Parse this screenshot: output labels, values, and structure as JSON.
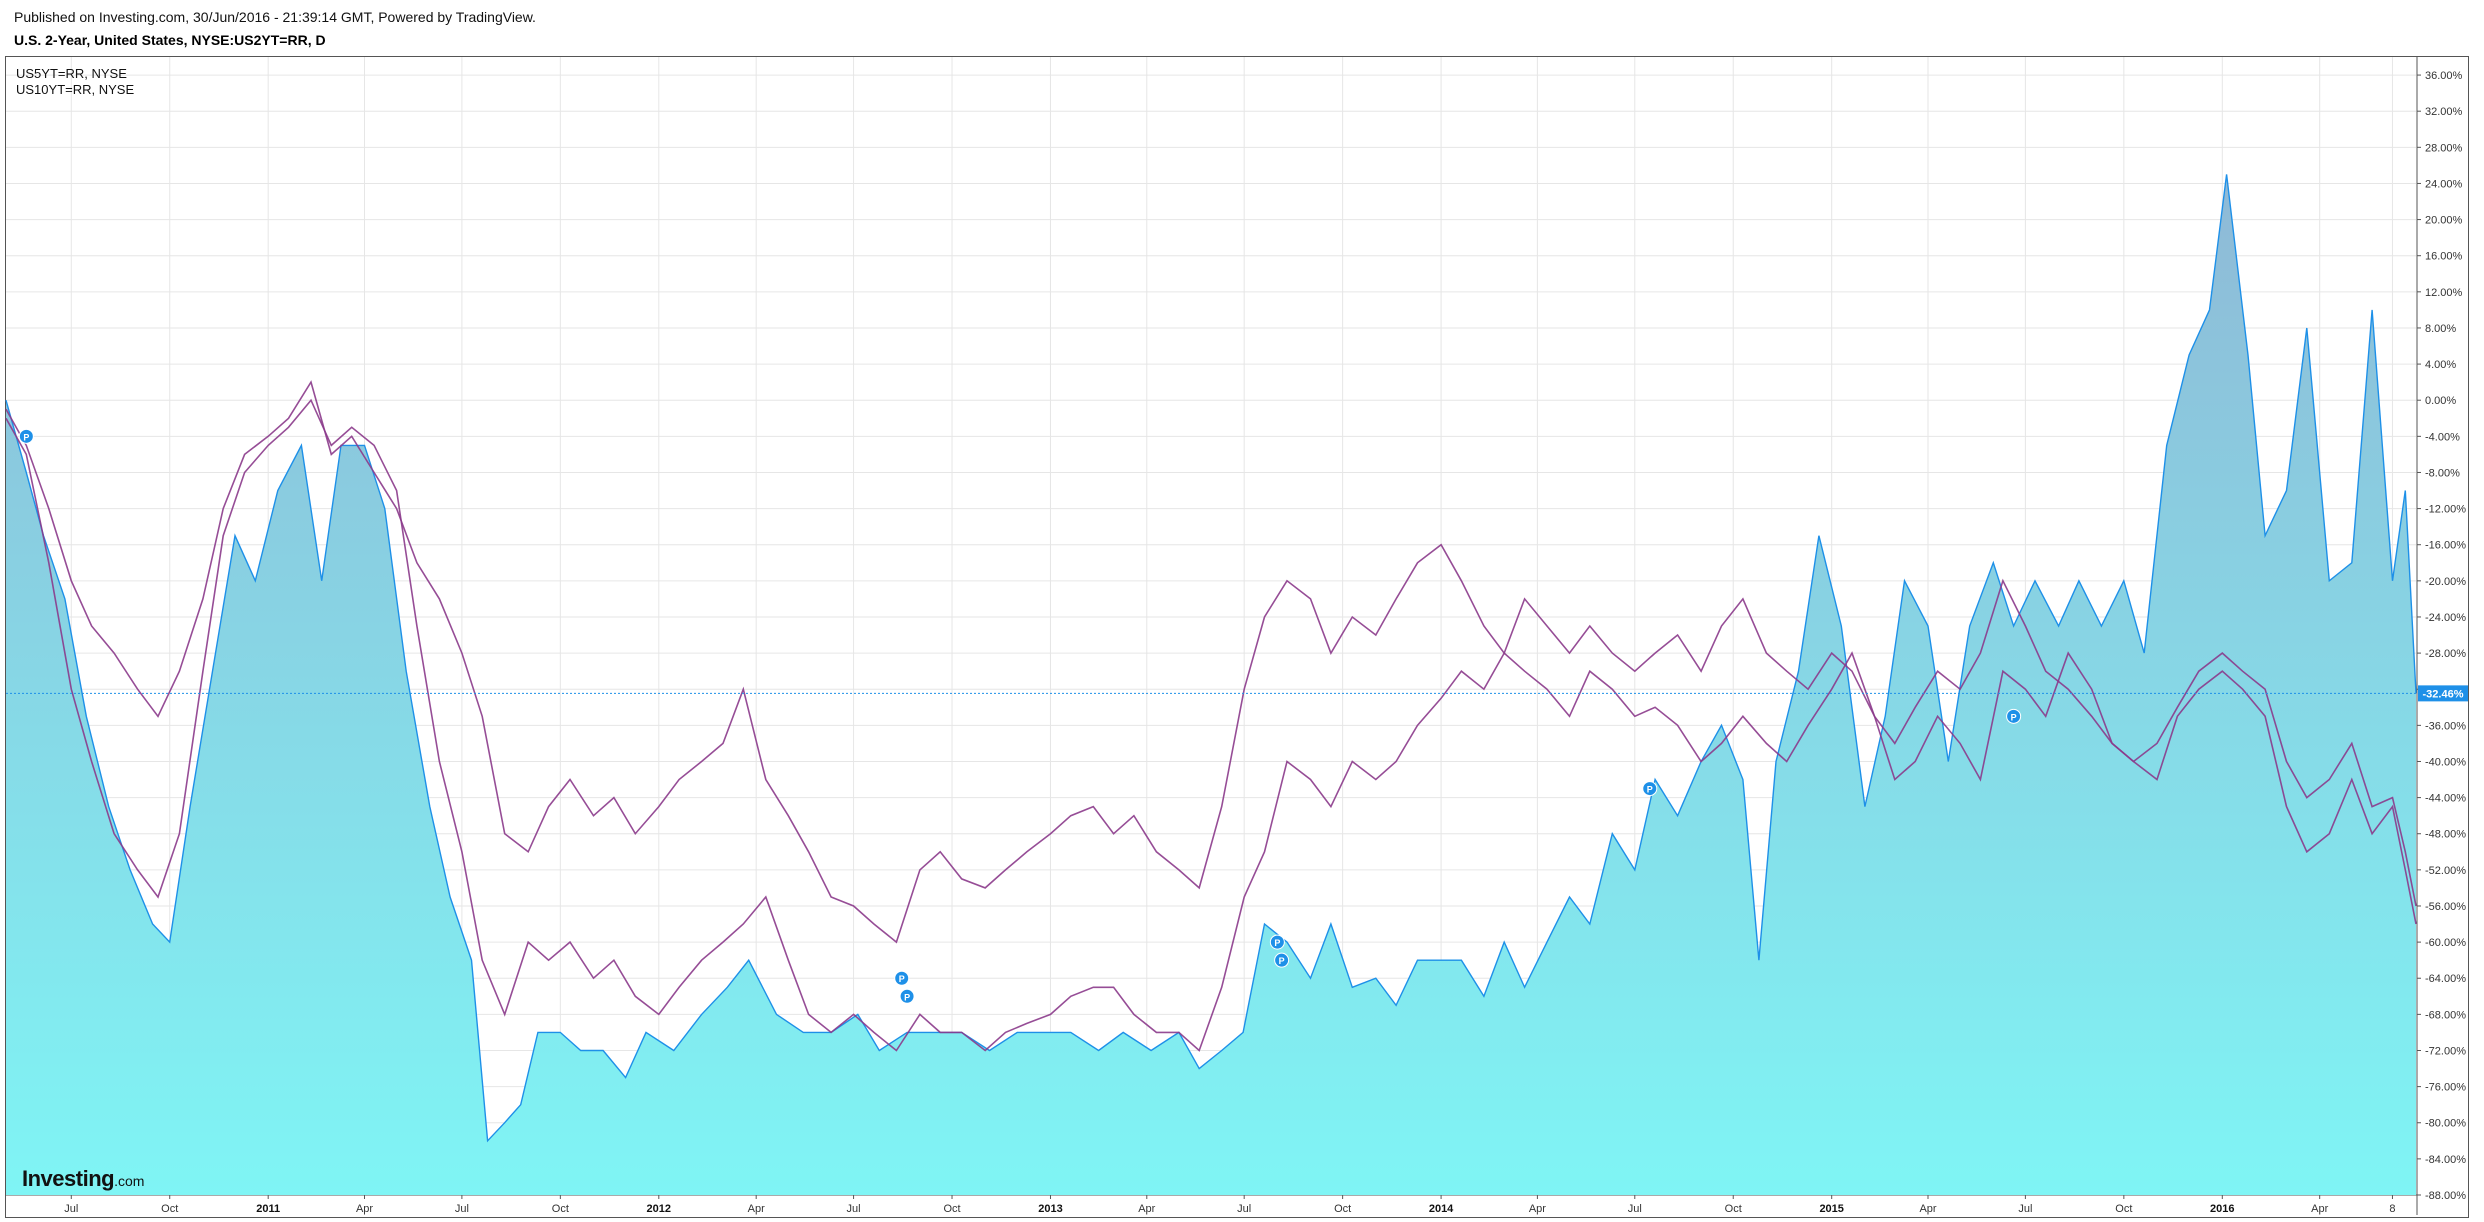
{
  "header": {
    "published": "Published on Investing.com, 30/Jun/2016 - 21:39:14 GMT, Powered by TradingView.",
    "title": "U.S. 2-Year, United States, NYSE:US2YT=RR, D"
  },
  "legend": {
    "items": [
      "US5YT=RR, NYSE",
      "US10YT=RR, NYSE"
    ]
  },
  "logo": {
    "brand": "Investing",
    "suffix": ".com"
  },
  "colors": {
    "main_line": "#1e90e8",
    "area_top": "#8fb9d6",
    "area_bottom": "#7ff5f5",
    "overlay_lines": "#8b3a8b",
    "last_label_bg": "#1e90e8",
    "grid": "#e6e6e6",
    "frame": "#555555"
  },
  "icons": {
    "markers": "pin-p-icon"
  },
  "chart_data": {
    "type": "line",
    "title": "U.S. 2-Year, United States, NYSE:US2YT=RR, D",
    "xlabel": "",
    "ylabel": "",
    "grid": true,
    "legend_placement": "top-left",
    "ylim": [
      -88,
      38
    ],
    "y_tick_labels": [
      "36.00%",
      "32.00%",
      "28.00%",
      "24.00%",
      "20.00%",
      "16.00%",
      "12.00%",
      "8.00%",
      "4.00%",
      "0.00%",
      "-4.00%",
      "-8.00%",
      "-12.00%",
      "-16.00%",
      "-20.00%",
      "-24.00%",
      "-28.00%",
      "-32.00%",
      "-36.00%",
      "-40.00%",
      "-44.00%",
      "-48.00%",
      "-52.00%",
      "-56.00%",
      "-60.00%",
      "-64.00%",
      "-68.00%",
      "-72.00%",
      "-76.00%",
      "-80.00%",
      "-84.00%",
      "-88.00%"
    ],
    "y_tick_values": [
      36,
      32,
      28,
      24,
      20,
      16,
      12,
      8,
      4,
      0,
      -4,
      -8,
      -12,
      -16,
      -20,
      -24,
      -28,
      -32,
      -36,
      -40,
      -44,
      -48,
      -52,
      -56,
      -60,
      -64,
      -68,
      -72,
      -76,
      -80,
      -84,
      -88
    ],
    "x_range": [
      "2010-05-01",
      "2016-06-30"
    ],
    "x_ticks": [
      {
        "label": "Jul",
        "date": "2010-07-01"
      },
      {
        "label": "Oct",
        "date": "2010-10-01"
      },
      {
        "label": "2011",
        "date": "2011-01-01",
        "year": true
      },
      {
        "label": "Apr",
        "date": "2011-04-01"
      },
      {
        "label": "Jul",
        "date": "2011-07-01"
      },
      {
        "label": "Oct",
        "date": "2011-10-01"
      },
      {
        "label": "2012",
        "date": "2012-01-01",
        "year": true
      },
      {
        "label": "Apr",
        "date": "2012-04-01"
      },
      {
        "label": "Jul",
        "date": "2012-07-01"
      },
      {
        "label": "Oct",
        "date": "2012-10-01"
      },
      {
        "label": "2013",
        "date": "2013-01-01",
        "year": true
      },
      {
        "label": "Apr",
        "date": "2013-04-01"
      },
      {
        "label": "Jul",
        "date": "2013-07-01"
      },
      {
        "label": "Oct",
        "date": "2013-10-01"
      },
      {
        "label": "2014",
        "date": "2014-01-01",
        "year": true
      },
      {
        "label": "Apr",
        "date": "2014-04-01"
      },
      {
        "label": "Jul",
        "date": "2014-07-01"
      },
      {
        "label": "Oct",
        "date": "2014-10-01"
      },
      {
        "label": "2015",
        "date": "2015-01-01",
        "year": true
      },
      {
        "label": "Apr",
        "date": "2015-04-01"
      },
      {
        "label": "Jul",
        "date": "2015-07-01"
      },
      {
        "label": "Oct",
        "date": "2015-10-01"
      },
      {
        "label": "2016",
        "date": "2016-01-01",
        "year": true
      },
      {
        "label": "Apr",
        "date": "2016-04-01"
      },
      {
        "label": "8",
        "date": "2016-06-08"
      }
    ],
    "last_value_label": "-32.46%",
    "last_value": -32.46,
    "series": [
      {
        "name": "U.S. 2-Year",
        "style": "area",
        "x": [
          "2010-05-01",
          "2010-05-20",
          "2010-06-05",
          "2010-06-25",
          "2010-07-15",
          "2010-08-05",
          "2010-08-25",
          "2010-09-15",
          "2010-10-01",
          "2010-10-20",
          "2010-11-10",
          "2010-12-01",
          "2010-12-20",
          "2011-01-10",
          "2011-02-01",
          "2011-02-20",
          "2011-03-10",
          "2011-04-01",
          "2011-04-20",
          "2011-05-10",
          "2011-06-01",
          "2011-06-20",
          "2011-07-10",
          "2011-07-25",
          "2011-08-10",
          "2011-08-25",
          "2011-09-10",
          "2011-10-01",
          "2011-10-20",
          "2011-11-10",
          "2011-12-01",
          "2011-12-20",
          "2012-01-15",
          "2012-02-10",
          "2012-03-05",
          "2012-03-25",
          "2012-04-20",
          "2012-05-15",
          "2012-06-10",
          "2012-07-05",
          "2012-07-25",
          "2012-08-20",
          "2012-09-15",
          "2012-10-10",
          "2012-11-05",
          "2012-12-01",
          "2012-12-25",
          "2013-01-20",
          "2013-02-15",
          "2013-03-10",
          "2013-04-05",
          "2013-05-01",
          "2013-05-20",
          "2013-06-10",
          "2013-06-30",
          "2013-07-20",
          "2013-08-10",
          "2013-09-01",
          "2013-09-20",
          "2013-10-10",
          "2013-11-01",
          "2013-11-20",
          "2013-12-10",
          "2014-01-01",
          "2014-01-20",
          "2014-02-10",
          "2014-03-01",
          "2014-03-20",
          "2014-04-10",
          "2014-05-01",
          "2014-05-20",
          "2014-06-10",
          "2014-07-01",
          "2014-07-20",
          "2014-08-10",
          "2014-09-01",
          "2014-09-20",
          "2014-10-10",
          "2014-10-25",
          "2014-11-10",
          "2014-12-01",
          "2014-12-20",
          "2015-01-10",
          "2015-02-01",
          "2015-02-20",
          "2015-03-10",
          "2015-04-01",
          "2015-04-20",
          "2015-05-10",
          "2015-06-01",
          "2015-06-20",
          "2015-07-10",
          "2015-08-01",
          "2015-08-20",
          "2015-09-10",
          "2015-10-01",
          "2015-10-20",
          "2015-11-10",
          "2015-12-01",
          "2015-12-20",
          "2016-01-05",
          "2016-01-25",
          "2016-02-10",
          "2016-03-01",
          "2016-03-20",
          "2016-04-10",
          "2016-05-01",
          "2016-05-20",
          "2016-06-08",
          "2016-06-20",
          "2016-06-30"
        ],
        "values": [
          0,
          -8,
          -15,
          -22,
          -35,
          -45,
          -52,
          -58,
          -60,
          -45,
          -30,
          -15,
          -20,
          -10,
          -5,
          -20,
          -5,
          -5,
          -12,
          -30,
          -45,
          -55,
          -62,
          -82,
          -80,
          -78,
          -70,
          -70,
          -72,
          -72,
          -75,
          -70,
          -72,
          -68,
          -65,
          -62,
          -68,
          -70,
          -70,
          -68,
          -72,
          -70,
          -70,
          -70,
          -72,
          -70,
          -70,
          -70,
          -72,
          -70,
          -72,
          -70,
          -74,
          -72,
          -70,
          -58,
          -60,
          -64,
          -58,
          -65,
          -64,
          -67,
          -62,
          -62,
          -62,
          -66,
          -60,
          -65,
          -60,
          -55,
          -58,
          -48,
          -52,
          -42,
          -46,
          -40,
          -36,
          -42,
          -62,
          -40,
          -30,
          -15,
          -25,
          -45,
          -35,
          -20,
          -25,
          -40,
          -25,
          -18,
          -25,
          -20,
          -25,
          -20,
          -25,
          -20,
          -28,
          -5,
          5,
          10,
          25,
          5,
          -15,
          -10,
          8,
          -20,
          -18,
          10,
          -20,
          -10,
          -32.46
        ]
      },
      {
        "name": "US5YT=RR, NYSE",
        "style": "line",
        "x": [
          "2010-05-01",
          "2010-05-20",
          "2010-06-10",
          "2010-07-01",
          "2010-07-20",
          "2010-08-10",
          "2010-09-01",
          "2010-09-20",
          "2010-10-10",
          "2010-11-01",
          "2010-11-20",
          "2010-12-10",
          "2011-01-01",
          "2011-01-20",
          "2011-02-10",
          "2011-03-01",
          "2011-03-20",
          "2011-04-10",
          "2011-05-01",
          "2011-05-20",
          "2011-06-10",
          "2011-07-01",
          "2011-07-20",
          "2011-08-10",
          "2011-09-01",
          "2011-09-20",
          "2011-10-10",
          "2011-11-01",
          "2011-11-20",
          "2011-12-10",
          "2012-01-01",
          "2012-01-20",
          "2012-02-10",
          "2012-03-01",
          "2012-03-20",
          "2012-04-10",
          "2012-05-01",
          "2012-05-20",
          "2012-06-10",
          "2012-07-01",
          "2012-07-20",
          "2012-08-10",
          "2012-09-01",
          "2012-09-20",
          "2012-10-10",
          "2012-11-01",
          "2012-11-20",
          "2012-12-10",
          "2013-01-01",
          "2013-01-20",
          "2013-02-10",
          "2013-03-01",
          "2013-03-20",
          "2013-04-10",
          "2013-05-01",
          "2013-05-20",
          "2013-06-10",
          "2013-07-01",
          "2013-07-20",
          "2013-08-10",
          "2013-09-01",
          "2013-09-20",
          "2013-10-10",
          "2013-11-01",
          "2013-11-20",
          "2013-12-10",
          "2014-01-01",
          "2014-01-20",
          "2014-02-10",
          "2014-03-01",
          "2014-03-20",
          "2014-04-10",
          "2014-05-01",
          "2014-05-20",
          "2014-06-10",
          "2014-07-01",
          "2014-07-20",
          "2014-08-10",
          "2014-09-01",
          "2014-09-20",
          "2014-10-10",
          "2014-11-01",
          "2014-11-20",
          "2014-12-10",
          "2015-01-01",
          "2015-01-20",
          "2015-02-10",
          "2015-03-01",
          "2015-03-20",
          "2015-04-10",
          "2015-05-01",
          "2015-05-20",
          "2015-06-10",
          "2015-07-01",
          "2015-07-20",
          "2015-08-10",
          "2015-09-01",
          "2015-09-20",
          "2015-10-10",
          "2015-11-01",
          "2015-11-20",
          "2015-12-10",
          "2016-01-01",
          "2016-01-20",
          "2016-02-10",
          "2016-03-01",
          "2016-03-20",
          "2016-04-10",
          "2016-05-01",
          "2016-05-20",
          "2016-06-08",
          "2016-06-20",
          "2016-06-30"
        ],
        "values": [
          -2,
          -6,
          -18,
          -32,
          -40,
          -48,
          -52,
          -55,
          -48,
          -30,
          -15,
          -8,
          -5,
          -3,
          0,
          -5,
          -3,
          -5,
          -10,
          -25,
          -40,
          -50,
          -62,
          -68,
          -60,
          -62,
          -60,
          -64,
          -62,
          -66,
          -68,
          -65,
          -62,
          -60,
          -58,
          -55,
          -62,
          -68,
          -70,
          -68,
          -70,
          -72,
          -68,
          -70,
          -70,
          -72,
          -70,
          -69,
          -68,
          -66,
          -65,
          -65,
          -68,
          -70,
          -70,
          -72,
          -65,
          -55,
          -50,
          -40,
          -42,
          -45,
          -40,
          -42,
          -40,
          -36,
          -33,
          -30,
          -32,
          -28,
          -30,
          -32,
          -35,
          -30,
          -32,
          -35,
          -34,
          -36,
          -40,
          -38,
          -35,
          -38,
          -40,
          -36,
          -32,
          -28,
          -35,
          -42,
          -40,
          -35,
          -38,
          -42,
          -30,
          -32,
          -35,
          -28,
          -32,
          -38,
          -40,
          -42,
          -35,
          -32,
          -30,
          -32,
          -35,
          -45,
          -50,
          -48,
          -42,
          -48,
          -45,
          -52,
          -58
        ]
      },
      {
        "name": "US10YT=RR, NYSE",
        "style": "line",
        "x": [
          "2010-05-01",
          "2010-05-20",
          "2010-06-10",
          "2010-07-01",
          "2010-07-20",
          "2010-08-10",
          "2010-09-01",
          "2010-09-20",
          "2010-10-10",
          "2010-11-01",
          "2010-11-20",
          "2010-12-10",
          "2011-01-01",
          "2011-01-20",
          "2011-02-10",
          "2011-03-01",
          "2011-03-20",
          "2011-04-10",
          "2011-05-01",
          "2011-05-20",
          "2011-06-10",
          "2011-07-01",
          "2011-07-20",
          "2011-08-10",
          "2011-09-01",
          "2011-09-20",
          "2011-10-10",
          "2011-11-01",
          "2011-11-20",
          "2011-12-10",
          "2012-01-01",
          "2012-01-20",
          "2012-02-10",
          "2012-03-01",
          "2012-03-20",
          "2012-04-10",
          "2012-05-01",
          "2012-05-20",
          "2012-06-10",
          "2012-07-01",
          "2012-07-20",
          "2012-08-10",
          "2012-09-01",
          "2012-09-20",
          "2012-10-10",
          "2012-11-01",
          "2012-11-20",
          "2012-12-10",
          "2013-01-01",
          "2013-01-20",
          "2013-02-10",
          "2013-03-01",
          "2013-03-20",
          "2013-04-10",
          "2013-05-01",
          "2013-05-20",
          "2013-06-10",
          "2013-07-01",
          "2013-07-20",
          "2013-08-10",
          "2013-09-01",
          "2013-09-20",
          "2013-10-10",
          "2013-11-01",
          "2013-11-20",
          "2013-12-10",
          "2014-01-01",
          "2014-01-20",
          "2014-02-10",
          "2014-03-01",
          "2014-03-20",
          "2014-04-10",
          "2014-05-01",
          "2014-05-20",
          "2014-06-10",
          "2014-07-01",
          "2014-07-20",
          "2014-08-10",
          "2014-09-01",
          "2014-09-20",
          "2014-10-10",
          "2014-11-01",
          "2014-11-20",
          "2014-12-10",
          "2015-01-01",
          "2015-01-20",
          "2015-02-10",
          "2015-03-01",
          "2015-03-20",
          "2015-04-10",
          "2015-05-01",
          "2015-05-20",
          "2015-06-10",
          "2015-07-01",
          "2015-07-20",
          "2015-08-10",
          "2015-09-01",
          "2015-09-20",
          "2015-10-10",
          "2015-11-01",
          "2015-11-20",
          "2015-12-10",
          "2016-01-01",
          "2016-01-20",
          "2016-02-10",
          "2016-03-01",
          "2016-03-20",
          "2016-04-10",
          "2016-05-01",
          "2016-05-20",
          "2016-06-08",
          "2016-06-20",
          "2016-06-30"
        ],
        "values": [
          -1,
          -5,
          -12,
          -20,
          -25,
          -28,
          -32,
          -35,
          -30,
          -22,
          -12,
          -6,
          -4,
          -2,
          2,
          -6,
          -4,
          -8,
          -12,
          -18,
          -22,
          -28,
          -35,
          -48,
          -50,
          -45,
          -42,
          -46,
          -44,
          -48,
          -45,
          -42,
          -40,
          -38,
          -32,
          -42,
          -46,
          -50,
          -55,
          -56,
          -58,
          -60,
          -52,
          -50,
          -53,
          -54,
          -52,
          -50,
          -48,
          -46,
          -45,
          -48,
          -46,
          -50,
          -52,
          -54,
          -45,
          -32,
          -24,
          -20,
          -22,
          -28,
          -24,
          -26,
          -22,
          -18,
          -16,
          -20,
          -25,
          -28,
          -22,
          -25,
          -28,
          -25,
          -28,
          -30,
          -28,
          -26,
          -30,
          -25,
          -22,
          -28,
          -30,
          -32,
          -28,
          -30,
          -35,
          -38,
          -34,
          -30,
          -32,
          -28,
          -20,
          -25,
          -30,
          -32,
          -35,
          -38,
          -40,
          -38,
          -34,
          -30,
          -28,
          -30,
          -32,
          -40,
          -44,
          -42,
          -38,
          -45,
          -44,
          -50,
          -56
        ]
      }
    ],
    "markers": [
      {
        "date": "2010-05-20",
        "value": -4
      },
      {
        "date": "2012-08-15",
        "value": -64
      },
      {
        "date": "2012-08-20",
        "value": -66
      },
      {
        "date": "2013-08-01",
        "value": -60
      },
      {
        "date": "2013-08-05",
        "value": -62
      },
      {
        "date": "2014-07-15",
        "value": -43
      },
      {
        "date": "2015-06-20",
        "value": -35
      }
    ]
  }
}
